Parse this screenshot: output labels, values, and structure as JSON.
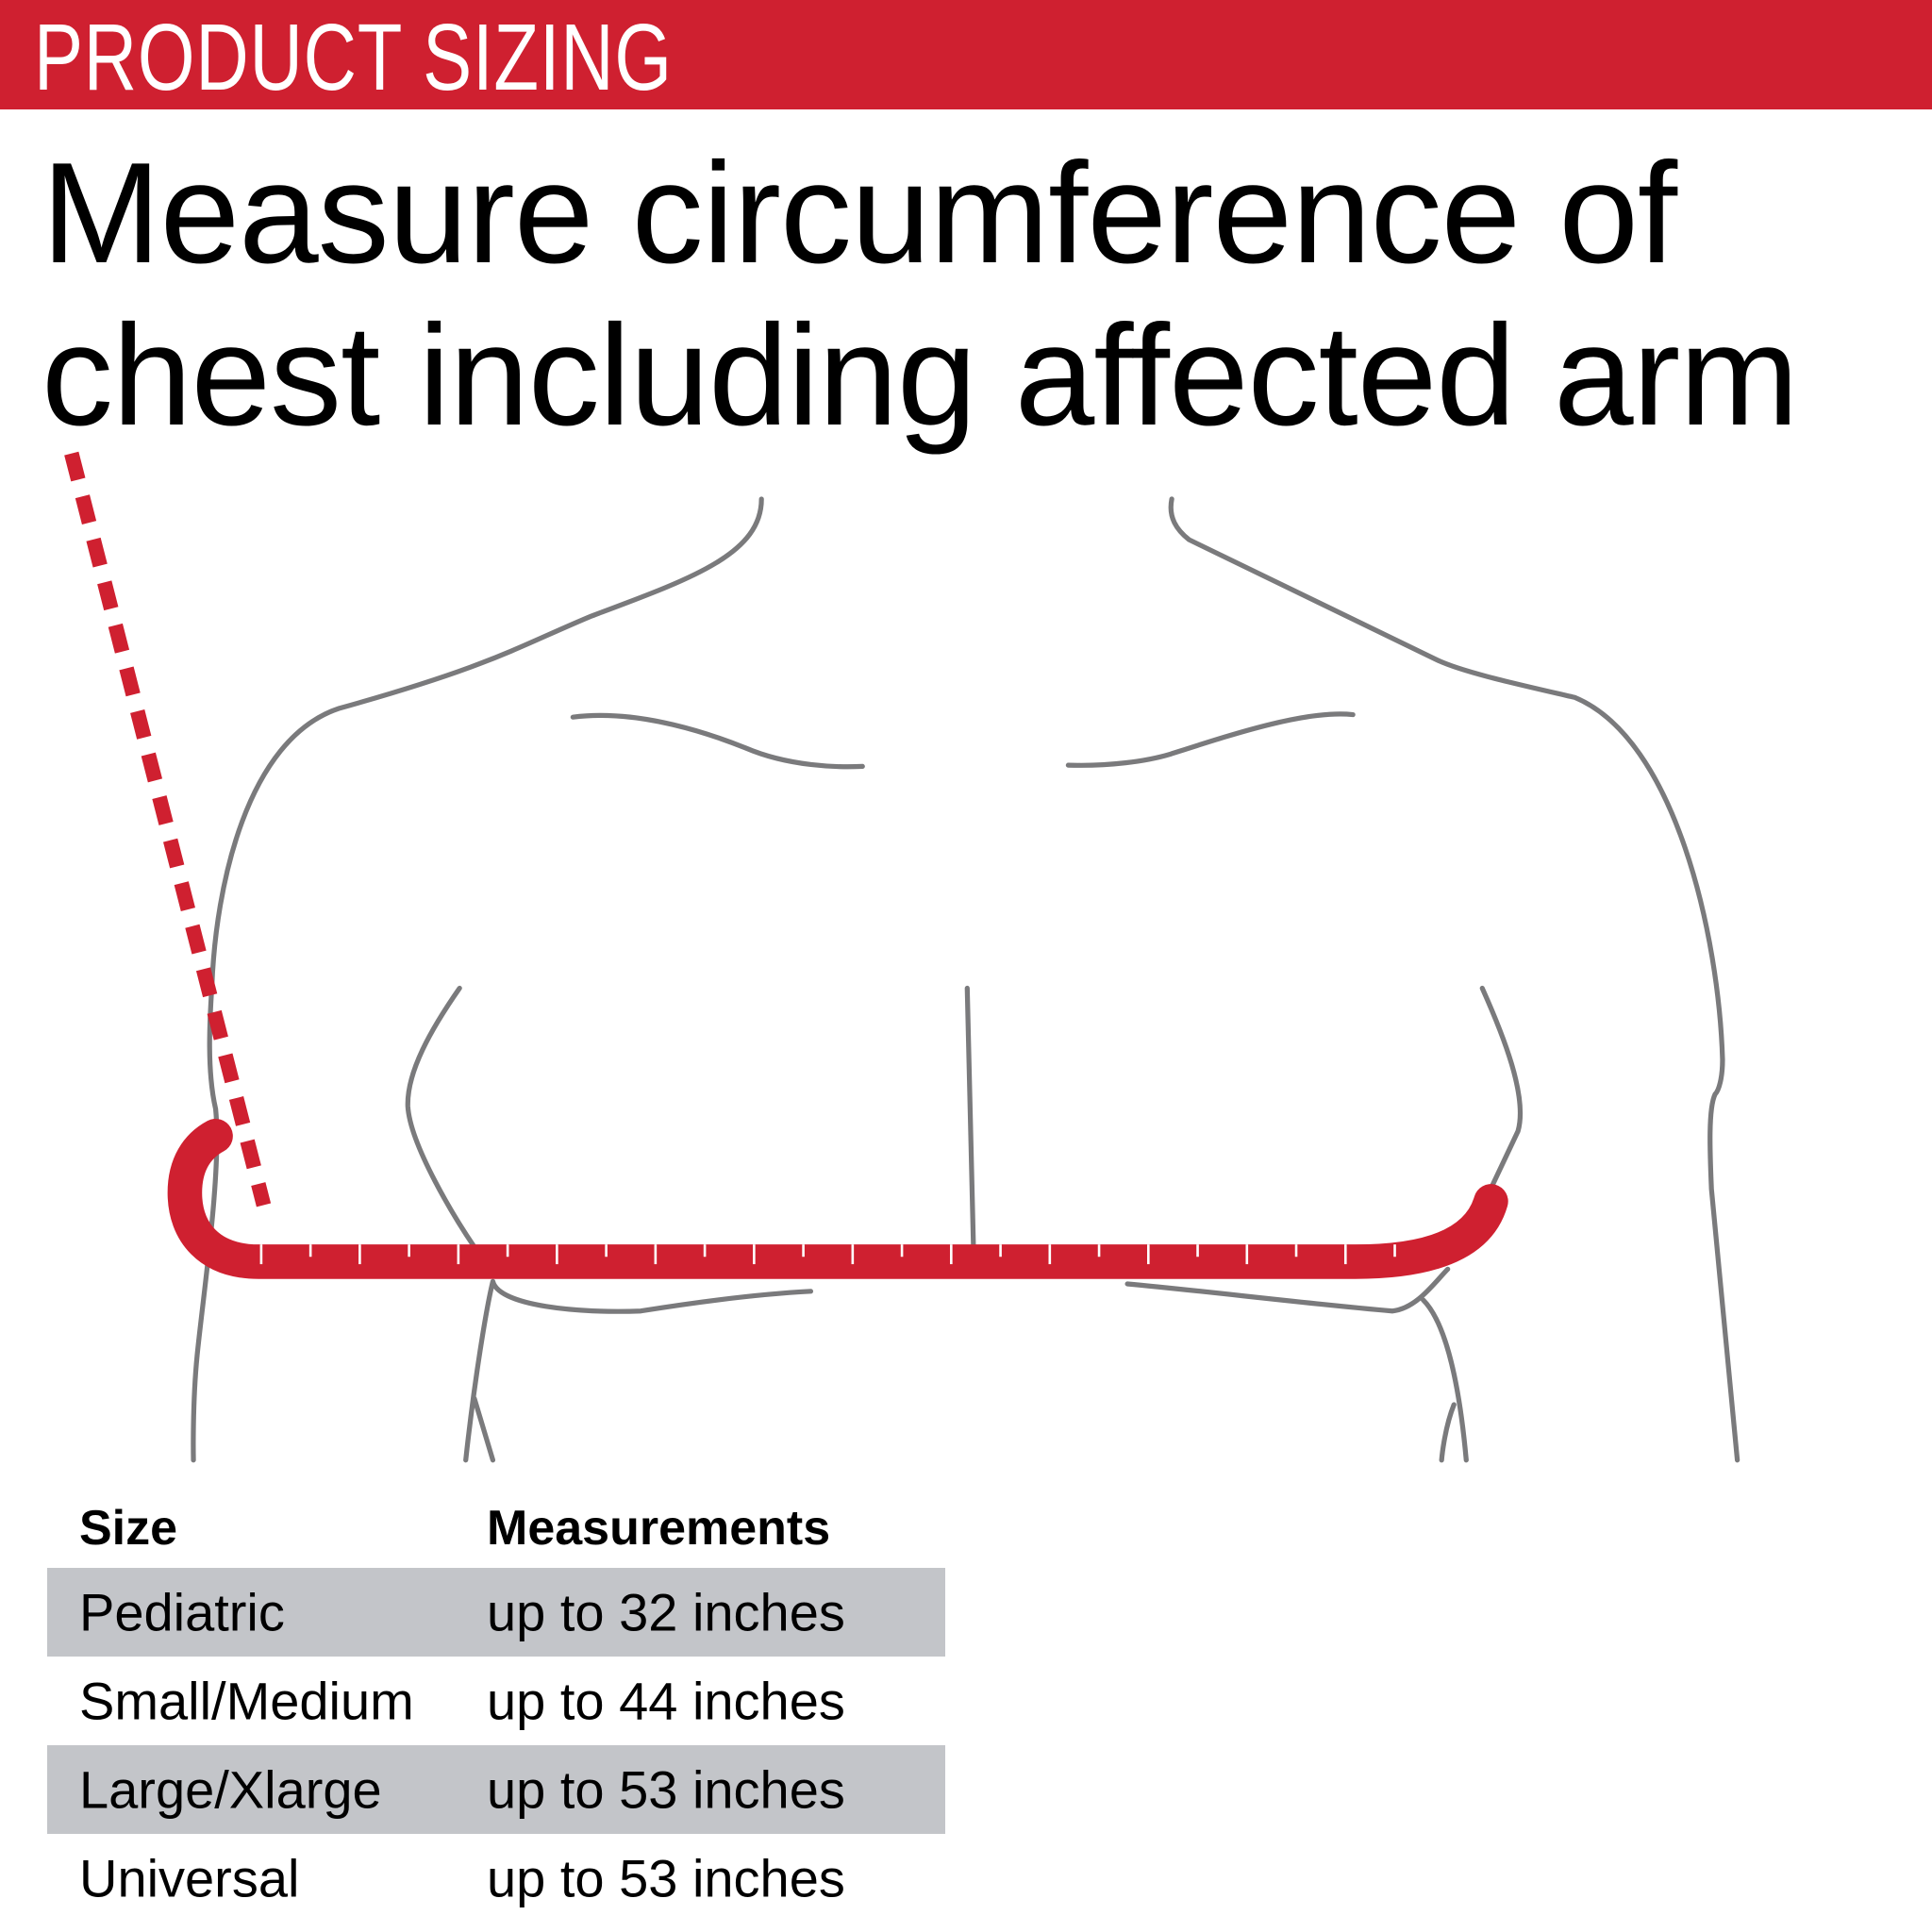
{
  "banner": {
    "title": "PRODUCT SIZING"
  },
  "headline": {
    "line1": "Measure circumference of",
    "line2": "chest including affected arm"
  },
  "colors": {
    "brand_red": "#cf2030",
    "outline_gray": "#7a7a7c",
    "row_shade": "#c3c5c9"
  },
  "table": {
    "headers": {
      "size": "Size",
      "measurements": "Measurements"
    },
    "rows": [
      {
        "size": "Pediatric",
        "measurement": "up to 32 inches"
      },
      {
        "size": "Small/Medium",
        "measurement": "up to 44 inches"
      },
      {
        "size": "Large/Xlarge",
        "measurement": "up to 53 inches"
      },
      {
        "size": "Universal",
        "measurement": "up to 53 inches"
      }
    ]
  }
}
